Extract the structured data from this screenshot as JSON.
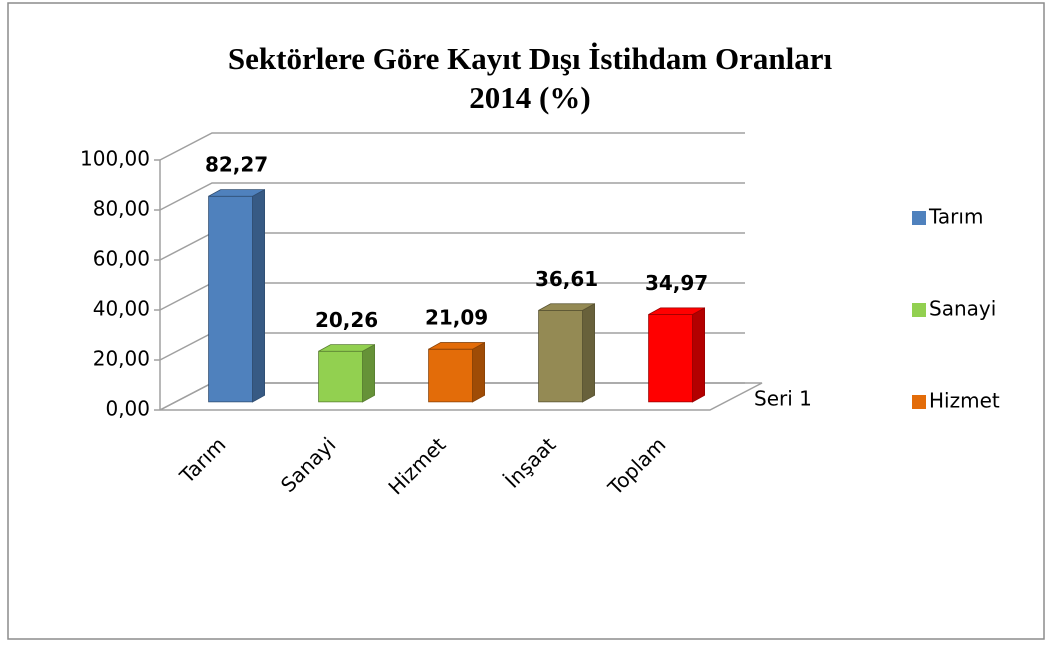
{
  "chart_data": {
    "type": "bar3d",
    "title": "Sektörlere Göre Kayıt Dışı İstihdam  Oranları",
    "subtitle": "2014 (%)",
    "categories": [
      "Tarım",
      "Sanayi",
      "Hizmet",
      "İnşaat",
      "Toplam"
    ],
    "values": [
      82.27,
      20.26,
      21.09,
      36.61,
      34.97
    ],
    "value_labels": [
      "82,27",
      "20,26",
      "21,09",
      "36,61",
      "34,97"
    ],
    "colors": [
      "#4f81bd",
      "#92d050",
      "#e36c09",
      "#948a54",
      "#ff0000"
    ],
    "series_name": "Seri 1",
    "legend_entries": [
      "Tarım",
      "Sanayi",
      "Hizmet"
    ],
    "ylim": [
      0,
      100
    ],
    "yticks": [
      {
        "value": 0,
        "label": "0,00"
      },
      {
        "value": 20,
        "label": "20,00"
      },
      {
        "value": 40,
        "label": "40,00"
      },
      {
        "value": 60,
        "label": "60,00"
      },
      {
        "value": 80,
        "label": "80,00"
      },
      {
        "value": 100,
        "label": "100,00"
      }
    ],
    "grid": true
  }
}
